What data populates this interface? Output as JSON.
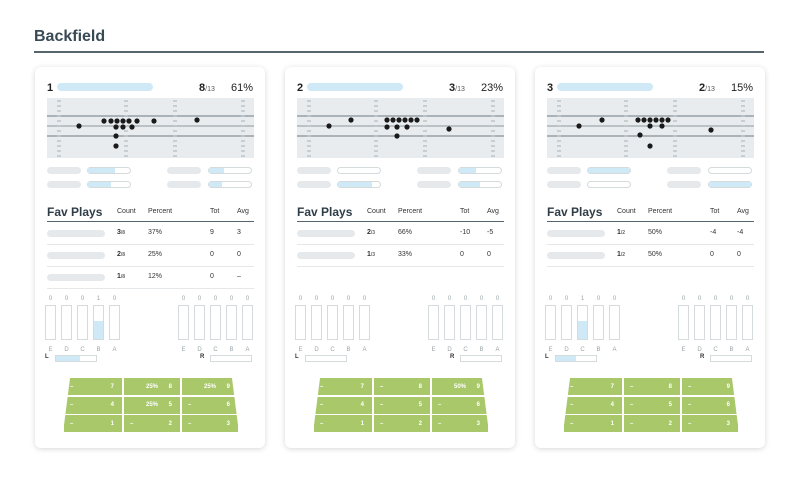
{
  "page": {
    "title": "Backfield"
  },
  "cards": [
    {
      "rank": "1",
      "count_num": "8",
      "count_den": "/13",
      "percent": "61%",
      "stat_fills": [
        0.65,
        0.35,
        0.55,
        0.3
      ],
      "headers": {
        "title": "Fav Plays",
        "count": "Count",
        "percent": "Percent",
        "tot": "Tot",
        "avg": "Avg"
      },
      "plays": [
        {
          "count_num": "3",
          "count_den": "/8",
          "percent": "37%",
          "tot": "9",
          "avg": "3"
        },
        {
          "count_num": "2",
          "count_den": "/8",
          "percent": "25%",
          "tot": "0",
          "avg": "0"
        },
        {
          "count_num": "1",
          "count_den": "/8",
          "percent": "12%",
          "tot": "0",
          "avg": "–"
        }
      ],
      "gaps_left": {
        "values": [
          "0",
          "0",
          "0",
          "1",
          "0"
        ],
        "letters": [
          "E",
          "D",
          "C",
          "B",
          "A"
        ],
        "fills": [
          0,
          0,
          0,
          0.55,
          0
        ]
      },
      "gaps_right": {
        "values": [
          "0",
          "0",
          "0",
          "0",
          "0"
        ],
        "letters": [
          "E",
          "D",
          "C",
          "B",
          "A"
        ],
        "fills": [
          0,
          0,
          0,
          0,
          0
        ]
      },
      "sides": {
        "left_label": "L",
        "right_label": "R",
        "left_fill": 0.6,
        "right_fill": 0
      },
      "zones": [
        [
          "–",
          "7",
          "25%",
          "8",
          "25%",
          "9"
        ],
        [
          "–",
          "4",
          "25%",
          "5",
          "–",
          "6"
        ],
        [
          "–",
          "1",
          "–",
          "2",
          "–",
          "3"
        ]
      ]
    },
    {
      "rank": "2",
      "count_num": "3",
      "count_den": "/13",
      "percent": "23%",
      "stat_fills": [
        0,
        0.4,
        0.8,
        0.5
      ],
      "headers": {
        "title": "Fav Plays",
        "count": "Count",
        "percent": "Percent",
        "tot": "Tot",
        "avg": "Avg"
      },
      "plays": [
        {
          "count_num": "2",
          "count_den": "/3",
          "percent": "66%",
          "tot": "-10",
          "avg": "-5"
        },
        {
          "count_num": "1",
          "count_den": "/3",
          "percent": "33%",
          "tot": "0",
          "avg": "0"
        }
      ],
      "gaps_left": {
        "values": [
          "0",
          "0",
          "0",
          "0",
          "0"
        ],
        "letters": [
          "E",
          "D",
          "C",
          "B",
          "A"
        ],
        "fills": [
          0,
          0,
          0,
          0,
          0
        ]
      },
      "gaps_right": {
        "values": [
          "0",
          "0",
          "0",
          "0",
          "0"
        ],
        "letters": [
          "E",
          "D",
          "C",
          "B",
          "A"
        ],
        "fills": [
          0,
          0,
          0,
          0,
          0
        ]
      },
      "sides": {
        "left_label": "L",
        "right_label": "R",
        "left_fill": 0,
        "right_fill": 0
      },
      "zones": [
        [
          "–",
          "7",
          "–",
          "8",
          "50%",
          "9"
        ],
        [
          "–",
          "4",
          "–",
          "5",
          "–",
          "6"
        ],
        [
          "–",
          "1",
          "–",
          "2",
          "–",
          "3"
        ]
      ]
    },
    {
      "rank": "3",
      "count_num": "2",
      "count_den": "/13",
      "percent": "15%",
      "stat_fills": [
        1,
        0,
        0,
        1
      ],
      "headers": {
        "title": "Fav Plays",
        "count": "Count",
        "percent": "Percent",
        "tot": "Tot",
        "avg": "Avg"
      },
      "plays": [
        {
          "count_num": "1",
          "count_den": "/2",
          "percent": "50%",
          "tot": "-4",
          "avg": "-4"
        },
        {
          "count_num": "1",
          "count_den": "/2",
          "percent": "50%",
          "tot": "0",
          "avg": "0"
        }
      ],
      "gaps_left": {
        "values": [
          "0",
          "0",
          "1",
          "0",
          "0"
        ],
        "letters": [
          "E",
          "D",
          "C",
          "B",
          "A"
        ],
        "fills": [
          0,
          0,
          0.55,
          0,
          0
        ]
      },
      "gaps_right": {
        "values": [
          "0",
          "0",
          "0",
          "0",
          "0"
        ],
        "letters": [
          "E",
          "D",
          "C",
          "B",
          "A"
        ],
        "fills": [
          0,
          0,
          0,
          0,
          0
        ]
      },
      "sides": {
        "left_label": "L",
        "right_label": "R",
        "left_fill": 0.5,
        "right_fill": 0
      },
      "zones": [
        [
          "–",
          "7",
          "–",
          "8",
          "–",
          "9"
        ],
        [
          "–",
          "4",
          "–",
          "5",
          "–",
          "6"
        ],
        [
          "–",
          "1",
          "–",
          "2",
          "–",
          "3"
        ]
      ]
    }
  ]
}
